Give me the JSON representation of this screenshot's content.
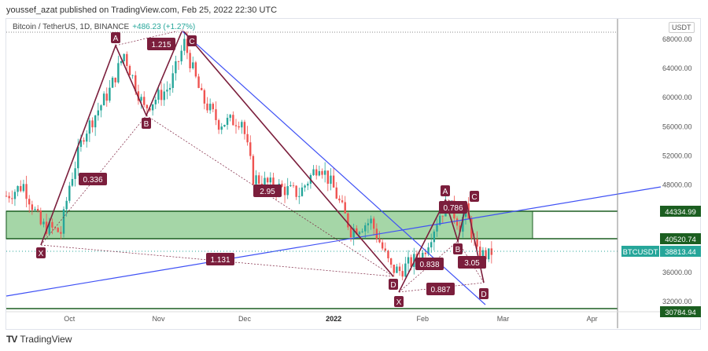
{
  "publish_line": "youssef_azat published on TradingView.com, Feb 25, 2022 22:30 UTC",
  "symbol_line": "Bitcoin / TetherUS, 1D, BINANCE",
  "change": "+486.23 (+1.27%)",
  "currency": "USDT",
  "brand": "TradingView",
  "colors": {
    "up": "#26a69a",
    "down": "#ef5350",
    "pattern": "#7b1e3c",
    "trend": "#3f51f5",
    "zone": "#a5d6a7",
    "zone_border": "#1b5e20",
    "price_tag": "#26a69a"
  },
  "price_labels": {
    "zone_top": "44334.99",
    "zone_bottom": "40520.74",
    "last_symbol": "BTCUSDT",
    "last_price": "38813.44",
    "bottom": "30784.94"
  },
  "chart_data": {
    "type": "candlestick",
    "y_ticks": [
      "68000.00",
      "64000.00",
      "60000.00",
      "56000.00",
      "52000.00",
      "48000.00",
      "36000.00",
      "32000.00"
    ],
    "x_ticks": [
      "Oct",
      "Nov",
      "Dec",
      "2022",
      "Feb",
      "Mar",
      "Apr"
    ],
    "ylim": [
      30800,
      69000
    ],
    "approx_close_path": [
      [
        "2021-09-09",
        46500
      ],
      [
        "2021-09-15",
        48000
      ],
      [
        "2021-09-21",
        42500
      ],
      [
        "2021-09-28",
        41500
      ],
      [
        "2021-10-01",
        48000
      ],
      [
        "2021-10-06",
        55000
      ],
      [
        "2021-10-15",
        61000
      ],
      [
        "2021-10-20",
        66000
      ],
      [
        "2021-10-27",
        58500
      ],
      [
        "2021-11-05",
        61500
      ],
      [
        "2021-11-10",
        67500
      ],
      [
        "2021-11-16",
        60000
      ],
      [
        "2021-11-22",
        56500
      ],
      [
        "2021-11-30",
        57000
      ],
      [
        "2021-12-04",
        49000
      ],
      [
        "2021-12-10",
        48000
      ],
      [
        "2021-12-20",
        46800
      ],
      [
        "2021-12-27",
        51000
      ],
      [
        "2022-01-01",
        47500
      ],
      [
        "2022-01-07",
        41800
      ],
      [
        "2022-01-14",
        43000
      ],
      [
        "2022-01-21",
        36500
      ],
      [
        "2022-01-24",
        36200
      ],
      [
        "2022-02-01",
        38500
      ],
      [
        "2022-02-07",
        44000
      ],
      [
        "2022-02-10",
        45500
      ],
      [
        "2022-02-14",
        42500
      ],
      [
        "2022-02-16",
        44500
      ],
      [
        "2022-02-20",
        38500
      ],
      [
        "2022-02-24",
        38300
      ],
      [
        "2022-02-25",
        38813
      ]
    ],
    "patterns": [
      {
        "points": [
          "X",
          "A",
          "B",
          "C",
          "D"
        ],
        "ratios": [
          "0.336",
          "1.215",
          "2.95",
          "1.131"
        ]
      },
      {
        "points": [
          "X",
          "A",
          "B",
          "C",
          "D"
        ],
        "ratios": [
          "0.838",
          "0.786",
          "3.05",
          "0.887"
        ]
      }
    ]
  }
}
